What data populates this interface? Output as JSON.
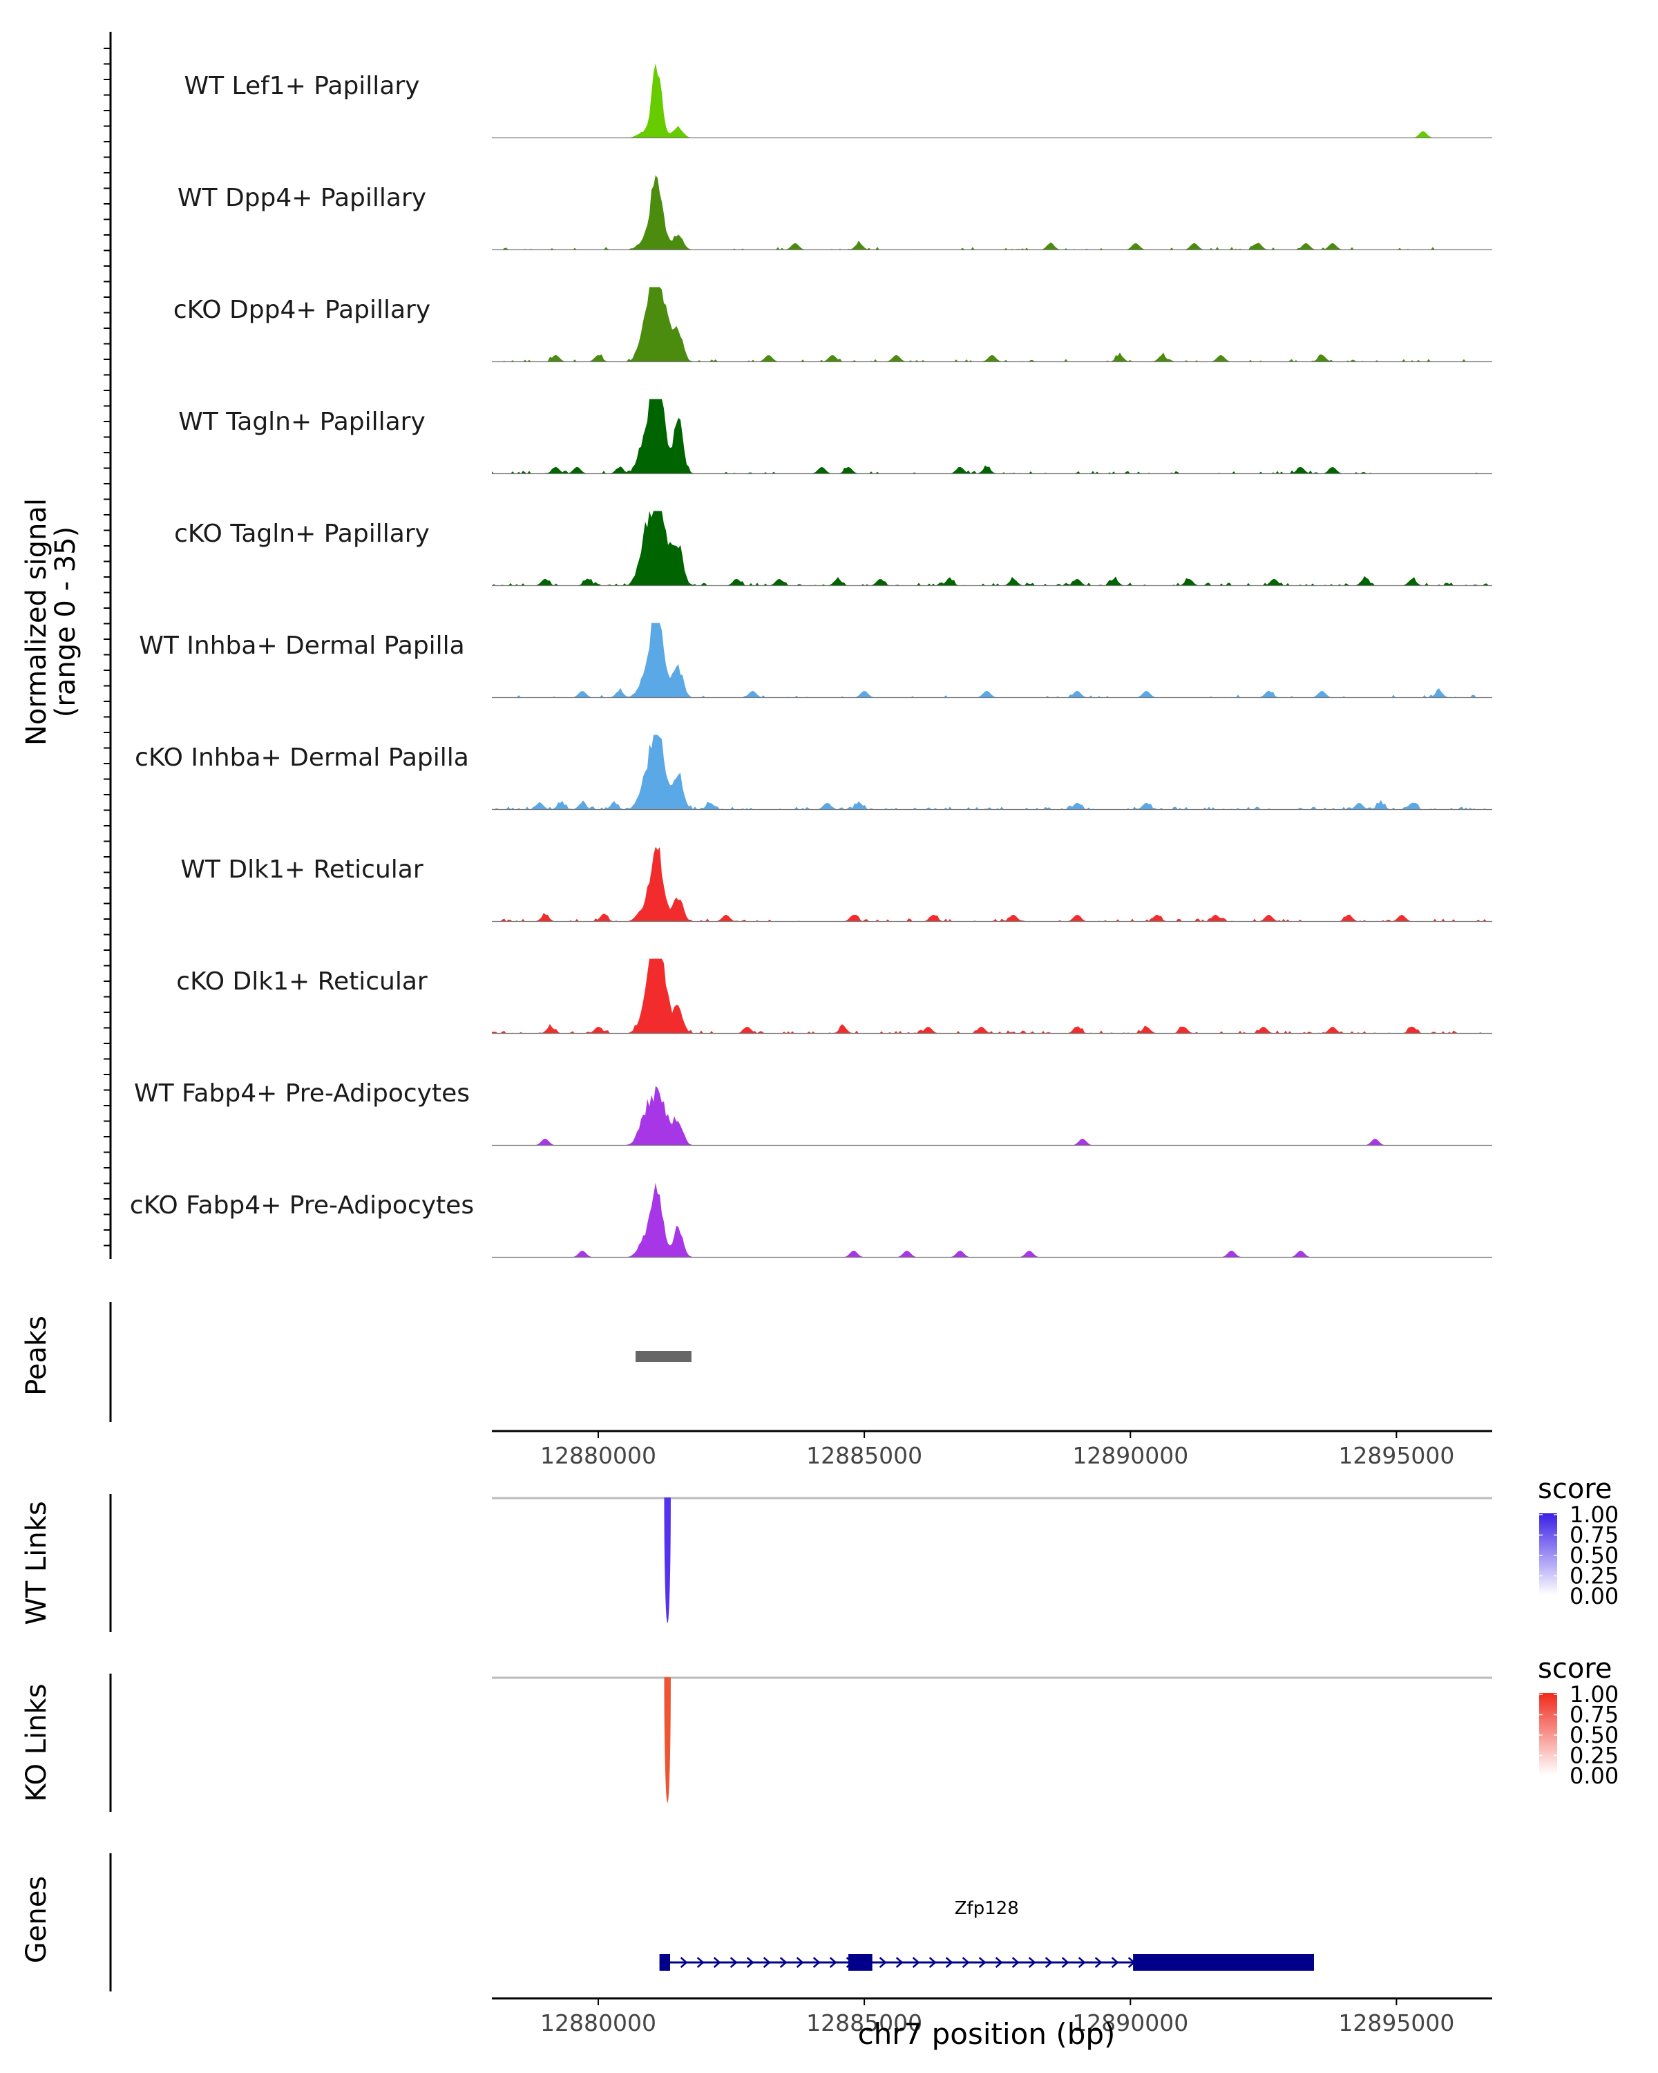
{
  "chart_data": {
    "type": "coverage-plot",
    "region": {
      "chrom": "chr7",
      "start": 12878000,
      "end": 12896800
    },
    "signal_axis": {
      "label_line1": "Normalized signal",
      "label_line2": "(range 0 - 35)",
      "range": [
        0,
        35
      ]
    },
    "tracks": [
      {
        "name": "WT Lef1+ Papillary",
        "color": "#66cc00",
        "peak": 1.0,
        "width": 90,
        "shoulder": 0.15,
        "noise": 0.0,
        "bumps": [
          12895500
        ]
      },
      {
        "name": "WT Dpp4+ Papillary",
        "color": "#4b8b0e",
        "peak": 1.0,
        "width": 110,
        "shoulder": 0.22,
        "noise": 0.04,
        "bumps": [
          12883700,
          12884900,
          12888500,
          12890100,
          12891200,
          12892400,
          12893300,
          12893800
        ]
      },
      {
        "name": "cKO Dpp4+ Papillary",
        "color": "#4b8b0e",
        "peak": 1.4,
        "width": 150,
        "shoulder": 0.3,
        "noise": 0.06,
        "bumps": [
          12879200,
          12880000,
          12883200,
          12884400,
          12885600,
          12887400,
          12889800,
          12890600,
          12891700,
          12893600
        ]
      },
      {
        "name": "WT Tagln+ Papillary",
        "color": "#006400",
        "peak": 1.5,
        "width": 120,
        "shoulder": 0.5,
        "noise": 0.05,
        "bumps": [
          12879200,
          12879600,
          12880400,
          12884200,
          12884700,
          12886800,
          12887300,
          12893200,
          12893800
        ]
      },
      {
        "name": "cKO Tagln+ Papillary",
        "color": "#006400",
        "peak": 1.2,
        "width": 170,
        "shoulder": 0.45,
        "noise": 0.1,
        "bumps": [
          12879000,
          12879800,
          12882600,
          12883400,
          12884500,
          12885300,
          12886600,
          12887800,
          12889000,
          12889700,
          12891100,
          12892700,
          12894400,
          12895300
        ]
      },
      {
        "name": "WT Inhba+ Dermal Papilla",
        "color": "#5aa8e6",
        "peak": 1.2,
        "width": 120,
        "shoulder": 0.35,
        "noise": 0.03,
        "bumps": [
          12879700,
          12880400,
          12882900,
          12885000,
          12887300,
          12889000,
          12890300,
          12892600,
          12893600,
          12895800
        ]
      },
      {
        "name": "cKO Inhba+ Dermal Papilla",
        "color": "#5aa8e6",
        "peak": 1.2,
        "width": 130,
        "shoulder": 0.4,
        "noise": 0.1,
        "bumps": [
          12878900,
          12879300,
          12879700,
          12880300,
          12882100,
          12884300,
          12884900,
          12889000,
          12890300,
          12894300,
          12894700,
          12895300
        ]
      },
      {
        "name": "WT Dlk1+ Reticular",
        "color": "#f22c2c",
        "peak": 1.1,
        "width": 110,
        "shoulder": 0.3,
        "noise": 0.06,
        "bumps": [
          12879000,
          12880100,
          12882400,
          12884800,
          12886300,
          12887800,
          12889000,
          12890500,
          12891600,
          12892600,
          12894100,
          12895100
        ]
      },
      {
        "name": "cKO Dlk1+ Reticular",
        "color": "#f22c2c",
        "peak": 1.4,
        "width": 140,
        "shoulder": 0.25,
        "noise": 0.08,
        "bumps": [
          12879100,
          12880000,
          12882800,
          12884600,
          12886200,
          12887200,
          12889000,
          12890300,
          12891000,
          12892500,
          12893800,
          12895300
        ]
      },
      {
        "name": "WT Fabp4+ Pre-Adipocytes",
        "color": "#a736e6",
        "peak": 0.7,
        "width": 180,
        "shoulder": 0.45,
        "noise": 0.0,
        "bumps": [
          12879000,
          12889100,
          12894600
        ]
      },
      {
        "name": "cKO Fabp4+ Pre-Adipocytes",
        "color": "#a736e6",
        "peak": 1.0,
        "width": 110,
        "shoulder": 0.4,
        "noise": 0.0,
        "bumps": [
          12879700,
          12884800,
          12885800,
          12886800,
          12888100,
          12891900,
          12893200
        ]
      }
    ],
    "main_peak_center": 12881100,
    "peaks": {
      "label": "Peaks",
      "regions": [
        [
          12880700,
          12881750
        ]
      ]
    },
    "x_axis": {
      "ticks": [
        12880000,
        12885000,
        12890000,
        12895000
      ],
      "tick_labels": [
        "12880000",
        "12885000",
        "12890000",
        "12895000"
      ],
      "label": "chr7 position (bp)"
    },
    "links": [
      {
        "label": "WT Links",
        "legend_title": "score",
        "color": "#5533ee",
        "gradient_top": "#3a1fe6",
        "anchor": 12881300,
        "score": 1.0,
        "legend_ticks": [
          "1.00",
          "0.75",
          "0.50",
          "0.25",
          "0.00"
        ]
      },
      {
        "label": "KO Links",
        "legend_title": "score",
        "color": "#ee5533",
        "gradient_top": "#f02a1c",
        "anchor": 12881300,
        "score": 1.0,
        "legend_ticks": [
          "1.00",
          "0.75",
          "0.50",
          "0.25",
          "0.00"
        ]
      }
    ],
    "genes": {
      "label": "Genes",
      "items": [
        {
          "name": "Zfp128",
          "strand": "+",
          "start": 12881150,
          "end": 12893450,
          "exons": [
            [
              12881150,
              12881350
            ],
            [
              12884700,
              12885150
            ],
            [
              12890050,
              12893450
            ]
          ],
          "color": "#00008b"
        }
      ]
    }
  }
}
